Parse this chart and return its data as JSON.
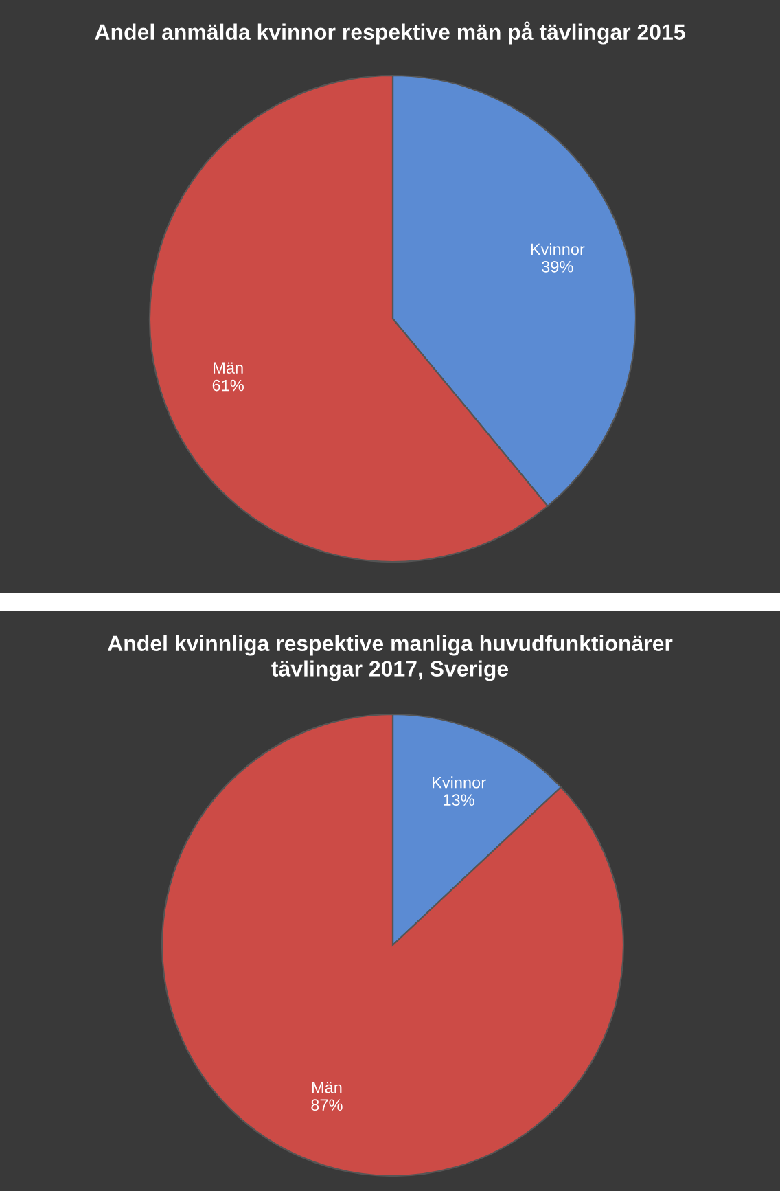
{
  "chart_data": [
    {
      "type": "pie",
      "title": "Andel anmälda kvinnor respektive män på tävlingar 2015",
      "categories": [
        "Kvinnor",
        "Män"
      ],
      "values": [
        39,
        61
      ],
      "value_labels": [
        "39%",
        "61%"
      ],
      "colors": [
        "#5b8bd3",
        "#cc4b46"
      ],
      "legend": false
    },
    {
      "type": "pie",
      "title": "Andel kvinnliga respektive manliga huvudfunktionärer\ntävlingar 2017, Sverige",
      "categories": [
        "Kvinnor",
        "Män"
      ],
      "values": [
        13,
        87
      ],
      "value_labels": [
        "13%",
        "87%"
      ],
      "colors": [
        "#5b8bd3",
        "#cc4b46"
      ],
      "legend": false
    }
  ]
}
